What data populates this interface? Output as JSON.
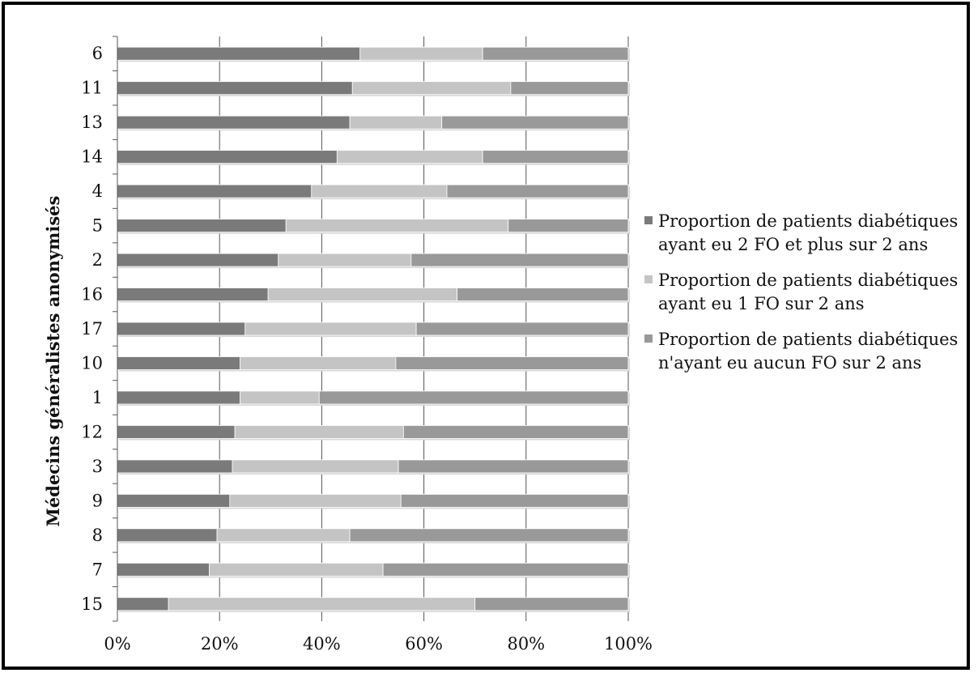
{
  "chart_data": {
    "type": "bar",
    "orientation": "horizontal",
    "stacked": true,
    "percent_stacked": true,
    "ylabel": "Médecins généralistes anonymisés",
    "xlabel": "",
    "categories": [
      "6",
      "11",
      "13",
      "14",
      "4",
      "5",
      "2",
      "16",
      "17",
      "10",
      "1",
      "12",
      "3",
      "9",
      "8",
      "7",
      "15"
    ],
    "series": [
      {
        "name": "Proportion de patients diabétiques ayant eu 2 FO et plus sur 2 ans",
        "color": "#7a7a7a",
        "values": [
          0.475,
          0.46,
          0.455,
          0.43,
          0.38,
          0.33,
          0.315,
          0.295,
          0.25,
          0.24,
          0.24,
          0.23,
          0.225,
          0.22,
          0.195,
          0.18,
          0.1
        ]
      },
      {
        "name": "Proportion de patients diabétiques ayant eu 1 FO  sur 2 ans",
        "color": "#c4c4c4",
        "values": [
          0.24,
          0.31,
          0.18,
          0.285,
          0.265,
          0.435,
          0.26,
          0.37,
          0.335,
          0.305,
          0.155,
          0.33,
          0.325,
          0.335,
          0.26,
          0.34,
          0.6
        ]
      },
      {
        "name": "Proportion de patients diabétiques n'ayant eu aucun FO sur 2 ans",
        "color": "#999999",
        "values": [
          0.285,
          0.23,
          0.365,
          0.285,
          0.355,
          0.235,
          0.425,
          0.335,
          0.415,
          0.455,
          0.605,
          0.44,
          0.45,
          0.445,
          0.545,
          0.48,
          0.3
        ]
      }
    ],
    "xlim": [
      0,
      1
    ],
    "xticks": [
      "0%",
      "20%",
      "40%",
      "60%",
      "80%",
      "100%"
    ],
    "grid": "vertical",
    "legend_position": "right"
  }
}
